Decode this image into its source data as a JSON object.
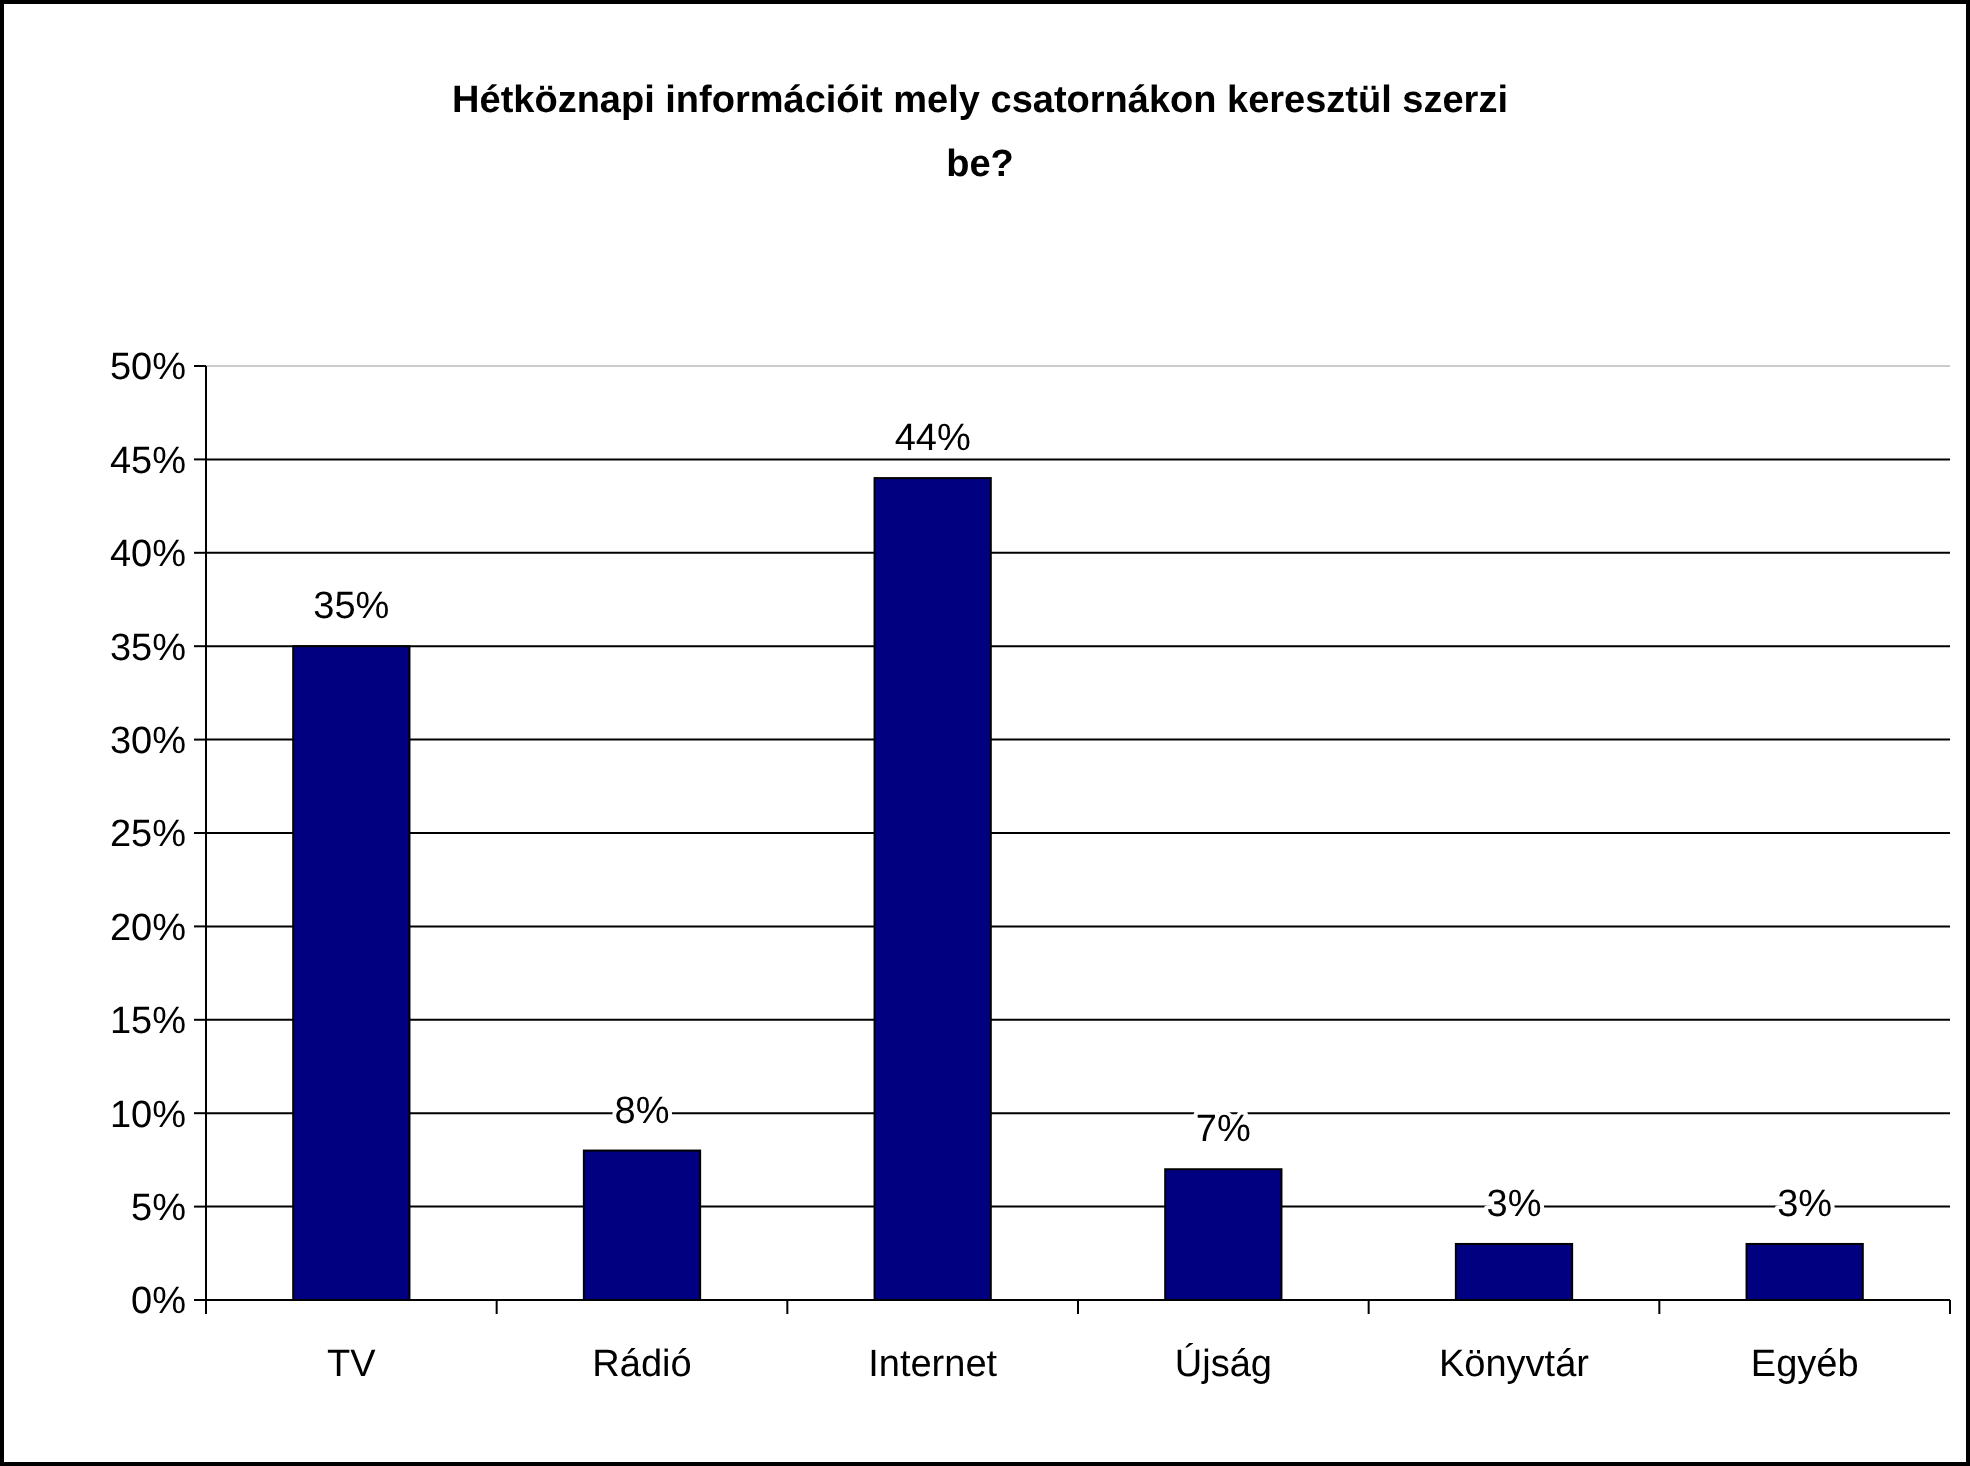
{
  "chart_data": {
    "type": "bar",
    "title": "Hétköznapi információit mely csatornákon keresztül szerzi be?",
    "categories": [
      "TV",
      "Rádió",
      "Internet",
      "Újság",
      "Könyvtár",
      "Egyéb"
    ],
    "values": [
      35,
      8,
      44,
      7,
      3,
      3
    ],
    "color": "#000080",
    "ylim": [
      0,
      50
    ],
    "yticks": [
      {
        "value": 0,
        "label": "0%"
      },
      {
        "value": 5,
        "label": "5%"
      },
      {
        "value": 10,
        "label": "10%"
      },
      {
        "value": 15,
        "label": "15%"
      },
      {
        "value": 20,
        "label": "20%"
      },
      {
        "value": 25,
        "label": "25%"
      },
      {
        "value": 30,
        "label": "30%"
      },
      {
        "value": 35,
        "label": "35%"
      },
      {
        "value": 40,
        "label": "40%"
      },
      {
        "value": 45,
        "label": "45%"
      },
      {
        "value": 50,
        "label": "50%"
      }
    ],
    "grid": "y",
    "value_labels": [
      "35%",
      "8%",
      "44%",
      "7%",
      "3%",
      "3%"
    ]
  }
}
